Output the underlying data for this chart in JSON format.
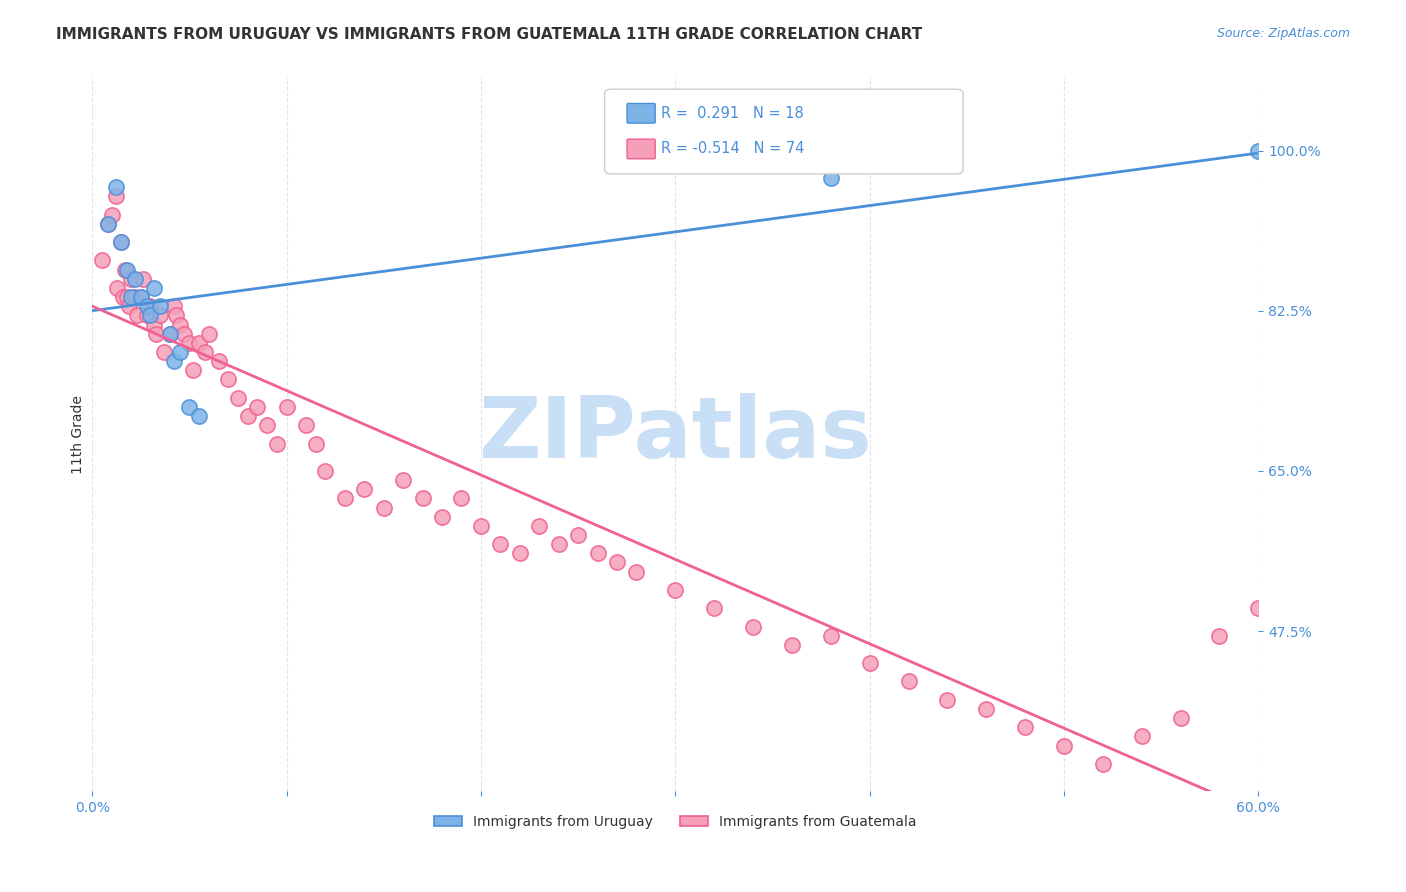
{
  "title": "IMMIGRANTS FROM URUGUAY VS IMMIGRANTS FROM GUATEMALA 11TH GRADE CORRELATION CHART",
  "source": "Source: ZipAtlas.com",
  "ylabel": "11th Grade",
  "ytick_labels": [
    "100.0%",
    "82.5%",
    "65.0%",
    "47.5%"
  ],
  "ytick_values": [
    1.0,
    0.825,
    0.65,
    0.475
  ],
  "xlim": [
    0.0,
    0.6
  ],
  "ylim": [
    0.3,
    1.08
  ],
  "legend_uruguay": "Immigrants from Uruguay",
  "legend_guatemala": "Immigrants from Guatemala",
  "R_uruguay": 0.291,
  "N_uruguay": 18,
  "R_guatemala": -0.514,
  "N_guatemala": 74,
  "color_uruguay": "#7eb3e8",
  "color_guatemala": "#f5a0b8",
  "line_color_uruguay": "#4a90d9",
  "line_color_guatemala": "#f06090",
  "watermark": "ZIPatlas",
  "watermark_color": "#c8dff5",
  "background_color": "#ffffff",
  "grid_color": "#dddddd",
  "title_color": "#333333",
  "axis_label_color": "#4a90d9",
  "uruguay_x": [
    0.008,
    0.012,
    0.015,
    0.018,
    0.02,
    0.022,
    0.025,
    0.028,
    0.03,
    0.032,
    0.035,
    0.04,
    0.042,
    0.045,
    0.05,
    0.055,
    0.38,
    0.6
  ],
  "uruguay_y": [
    0.92,
    0.96,
    0.9,
    0.87,
    0.84,
    0.86,
    0.84,
    0.83,
    0.82,
    0.85,
    0.83,
    0.8,
    0.77,
    0.78,
    0.72,
    0.71,
    0.97,
    1.0
  ],
  "guatemala_x": [
    0.005,
    0.008,
    0.01,
    0.012,
    0.013,
    0.015,
    0.016,
    0.017,
    0.018,
    0.019,
    0.02,
    0.022,
    0.023,
    0.025,
    0.026,
    0.028,
    0.03,
    0.032,
    0.033,
    0.035,
    0.037,
    0.04,
    0.042,
    0.043,
    0.045,
    0.047,
    0.05,
    0.052,
    0.055,
    0.058,
    0.06,
    0.065,
    0.07,
    0.075,
    0.08,
    0.085,
    0.09,
    0.095,
    0.1,
    0.11,
    0.115,
    0.12,
    0.13,
    0.14,
    0.15,
    0.16,
    0.17,
    0.18,
    0.19,
    0.2,
    0.21,
    0.22,
    0.23,
    0.24,
    0.25,
    0.26,
    0.27,
    0.28,
    0.3,
    0.32,
    0.34,
    0.36,
    0.38,
    0.4,
    0.42,
    0.44,
    0.46,
    0.48,
    0.5,
    0.52,
    0.54,
    0.56,
    0.58,
    0.6
  ],
  "guatemala_y": [
    0.88,
    0.92,
    0.93,
    0.95,
    0.85,
    0.9,
    0.84,
    0.87,
    0.84,
    0.83,
    0.86,
    0.84,
    0.82,
    0.84,
    0.86,
    0.82,
    0.83,
    0.81,
    0.8,
    0.82,
    0.78,
    0.8,
    0.83,
    0.82,
    0.81,
    0.8,
    0.79,
    0.76,
    0.79,
    0.78,
    0.8,
    0.77,
    0.75,
    0.73,
    0.71,
    0.72,
    0.7,
    0.68,
    0.72,
    0.7,
    0.68,
    0.65,
    0.62,
    0.63,
    0.61,
    0.64,
    0.62,
    0.6,
    0.62,
    0.59,
    0.57,
    0.56,
    0.59,
    0.57,
    0.58,
    0.56,
    0.55,
    0.54,
    0.52,
    0.5,
    0.48,
    0.46,
    0.47,
    0.44,
    0.42,
    0.4,
    0.39,
    0.37,
    0.35,
    0.33,
    0.36,
    0.38,
    0.47,
    0.5
  ]
}
